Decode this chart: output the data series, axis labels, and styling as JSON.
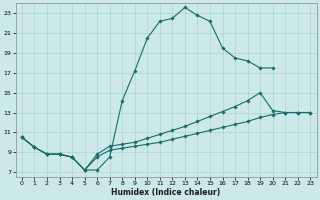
{
  "xlabel": "Humidex (Indice chaleur)",
  "background_color": "#cce8e8",
  "grid_color": "#aad4d4",
  "line_color": "#1a6b6b",
  "xlim": [
    -0.5,
    23.5
  ],
  "ylim": [
    6.5,
    24.0
  ],
  "xticks": [
    0,
    1,
    2,
    3,
    4,
    5,
    6,
    7,
    8,
    9,
    10,
    11,
    12,
    13,
    14,
    15,
    16,
    17,
    18,
    19,
    20,
    21,
    22,
    23
  ],
  "yticks": [
    7,
    9,
    11,
    13,
    15,
    17,
    19,
    21,
    23
  ],
  "curve1_x": [
    0,
    1,
    2,
    3,
    4,
    5,
    6,
    7,
    8,
    9,
    10,
    11,
    12,
    13,
    14,
    15,
    16,
    17,
    18,
    19,
    20
  ],
  "curve1_y": [
    10.5,
    9.5,
    8.8,
    8.8,
    8.5,
    7.2,
    7.2,
    8.5,
    14.2,
    17.2,
    20.5,
    22.2,
    22.5,
    23.6,
    22.8,
    22.2,
    19.5,
    18.5,
    18.2,
    17.5,
    17.5
  ],
  "curve2_x": [
    0,
    1,
    2,
    3,
    4,
    5,
    6,
    7,
    8,
    9,
    10,
    11,
    12,
    13,
    14,
    15,
    16,
    17,
    18,
    19,
    20,
    21,
    22,
    23
  ],
  "curve2_y": [
    10.5,
    9.5,
    8.8,
    8.8,
    8.5,
    7.2,
    8.8,
    9.6,
    9.8,
    10.0,
    10.4,
    10.8,
    11.2,
    11.6,
    12.1,
    12.6,
    13.1,
    13.6,
    14.2,
    15.0,
    13.2,
    13.0,
    13.0,
    13.0
  ],
  "curve3_x": [
    0,
    1,
    2,
    3,
    4,
    5,
    6,
    7,
    8,
    9,
    10,
    11,
    12,
    13,
    14,
    15,
    16,
    17,
    18,
    19,
    20,
    21,
    22,
    23
  ],
  "curve3_y": [
    10.5,
    9.5,
    8.8,
    8.8,
    8.5,
    7.2,
    8.5,
    9.2,
    9.4,
    9.6,
    9.8,
    10.0,
    10.3,
    10.6,
    10.9,
    11.2,
    11.5,
    11.8,
    12.1,
    12.5,
    12.8,
    13.0,
    13.0,
    13.0
  ],
  "xlabel_fontsize": 5.5,
  "tick_fontsize": 4.5,
  "linewidth": 0.8,
  "markersize": 1.8
}
